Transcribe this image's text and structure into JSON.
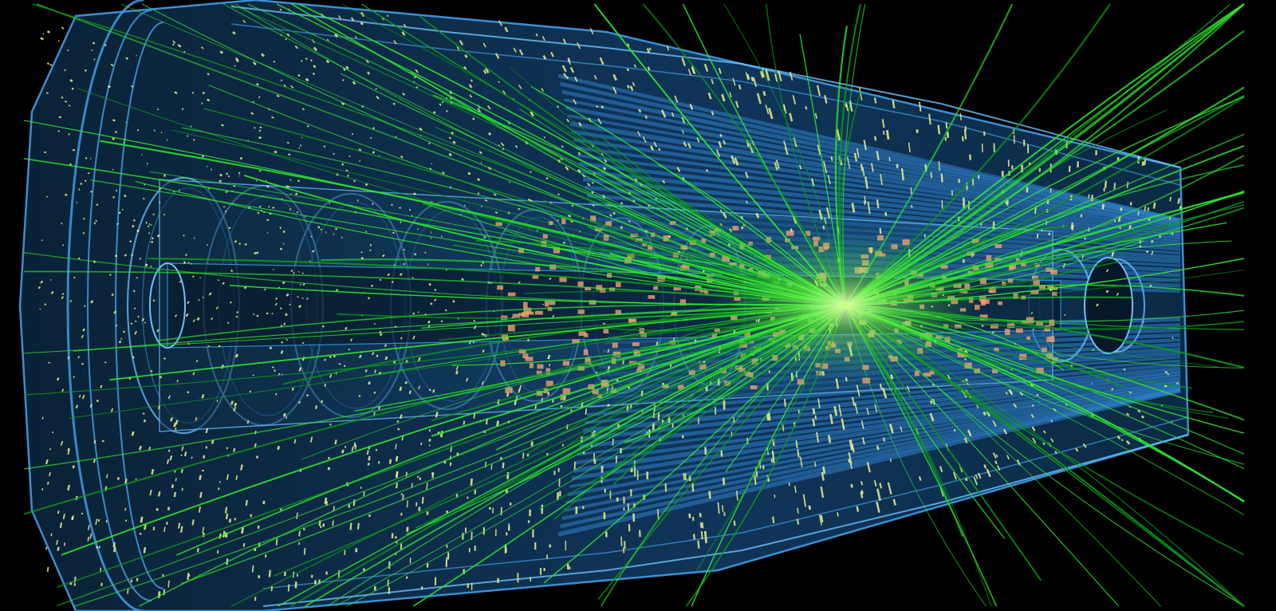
{
  "scene": {
    "subject": "particle-collision-event-display",
    "palette": {
      "background": "#000000",
      "detector_fill": "#0e2a44",
      "detector_fill_dark": "#061827",
      "detector_outline": "#3f9ce6",
      "detector_outline_light": "#6cc0ff",
      "calorimeter_hits": "#e9f08a",
      "inner_hits": "#f0a070",
      "tracks": "#2ee62e",
      "tracks_dark": "#0c9a1a",
      "vertex_glow": "#c8ff80"
    },
    "counts": {
      "tracks": 190,
      "calorimeter_hits": 1600,
      "inner_hits": 320,
      "detector_rings": 9
    }
  }
}
